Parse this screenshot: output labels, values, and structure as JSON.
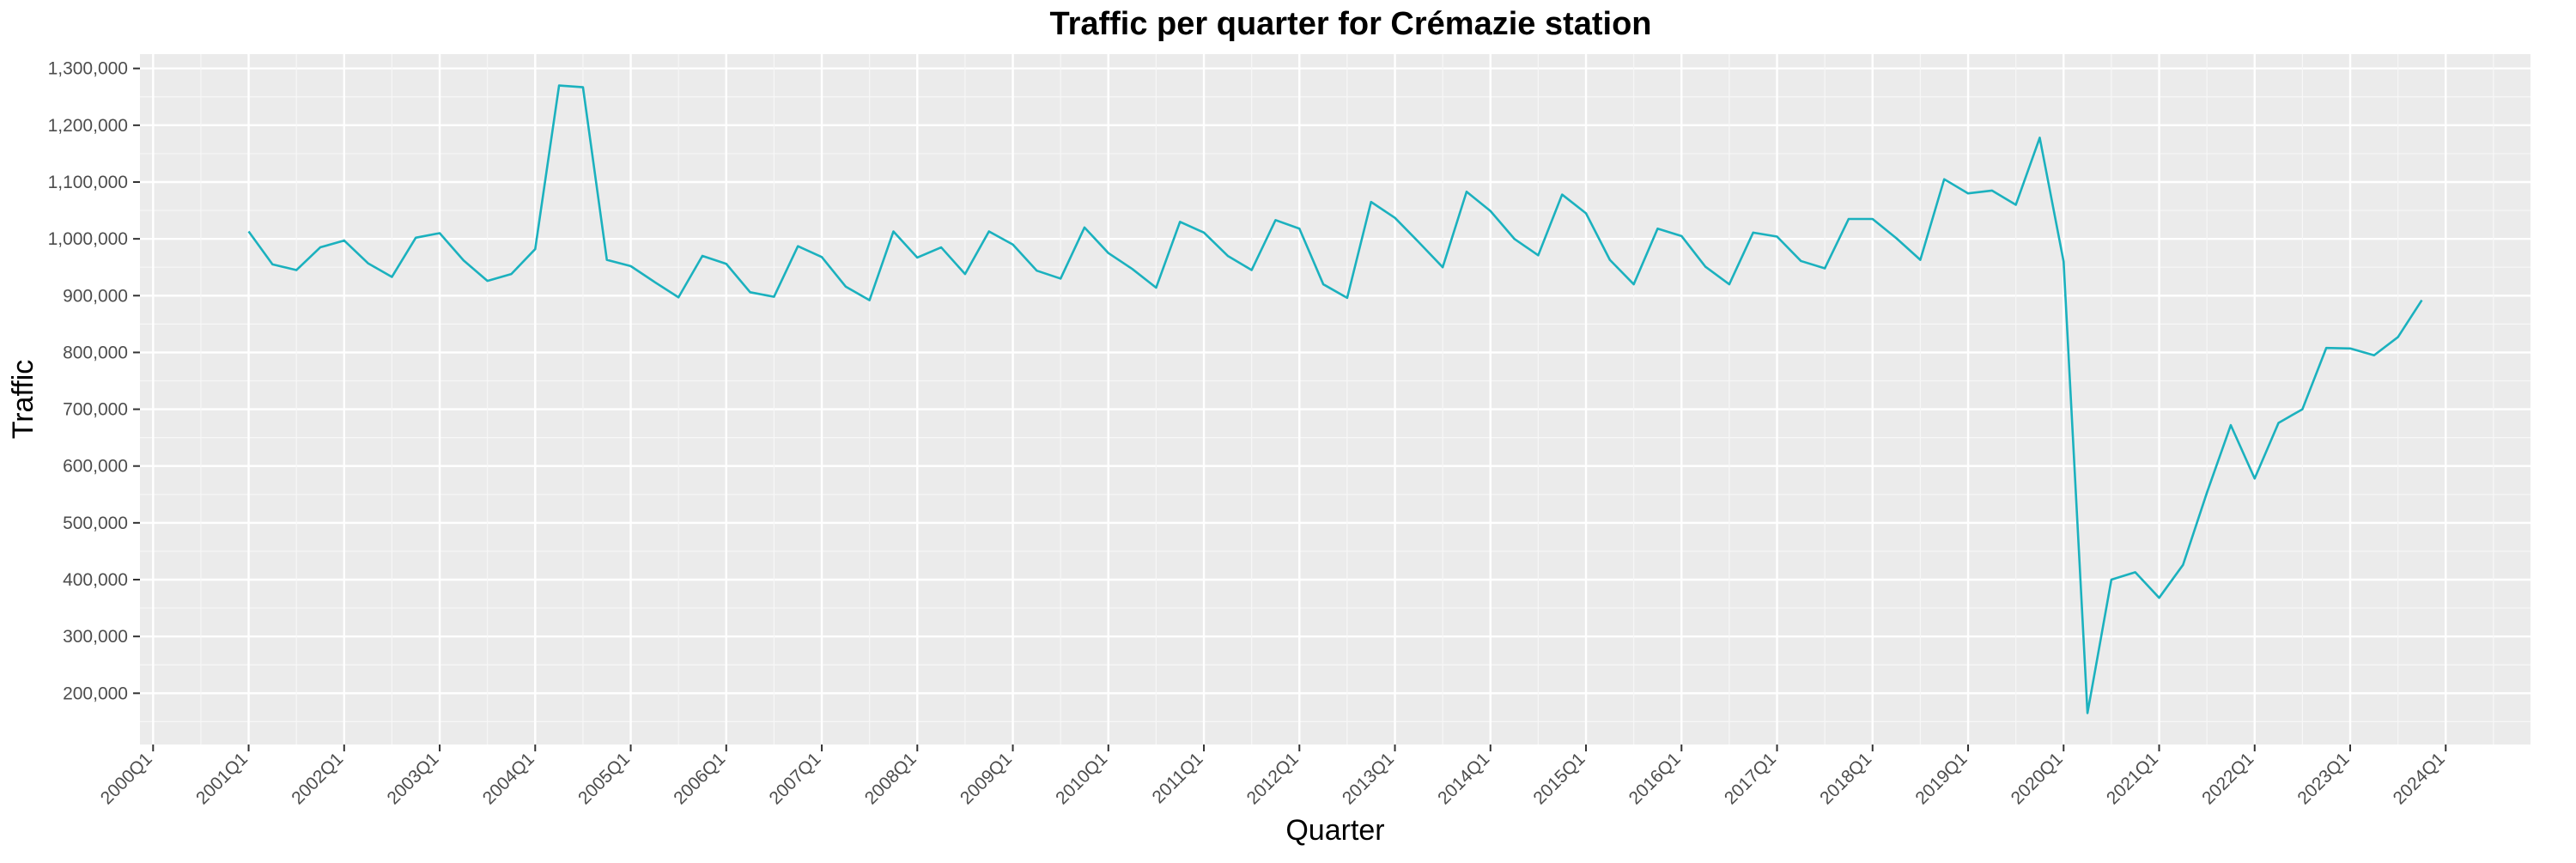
{
  "chart_data": {
    "type": "line",
    "title": "Traffic per quarter for Crémazie station",
    "xlabel": "Quarter",
    "ylabel": "Traffic",
    "x_ticks": [
      "2000Q1",
      "2001Q1",
      "2002Q1",
      "2003Q1",
      "2004Q1",
      "2005Q1",
      "2006Q1",
      "2007Q1",
      "2008Q1",
      "2009Q1",
      "2010Q1",
      "2011Q1",
      "2012Q1",
      "2013Q1",
      "2014Q1",
      "2015Q1",
      "2016Q1",
      "2017Q1",
      "2018Q1",
      "2019Q1",
      "2020Q1",
      "2021Q1",
      "2022Q1",
      "2023Q1",
      "2024Q1"
    ],
    "y_ticks": [
      "200,000",
      "300,000",
      "400,000",
      "500,000",
      "600,000",
      "700,000",
      "800,000",
      "900,000",
      "1,000,000",
      "1,100,000",
      "1,200,000",
      "1,300,000"
    ],
    "xlim": [
      "2000Q1",
      "2024Q1"
    ],
    "ylim": [
      150000,
      1320000
    ],
    "grid": true,
    "line_color": "#1bb1be",
    "series": [
      {
        "x": [
          "2001Q1",
          "2001Q2",
          "2001Q3",
          "2001Q4",
          "2002Q1",
          "2002Q2",
          "2002Q3",
          "2002Q4",
          "2003Q1",
          "2003Q2",
          "2003Q3",
          "2003Q4",
          "2004Q1",
          "2004Q2",
          "2004Q3",
          "2004Q4",
          "2005Q1",
          "2005Q2",
          "2005Q3",
          "2005Q4",
          "2006Q1",
          "2006Q2",
          "2006Q3",
          "2006Q4",
          "2007Q1",
          "2007Q2",
          "2007Q3",
          "2007Q4",
          "2008Q1",
          "2008Q2",
          "2008Q3",
          "2008Q4",
          "2009Q1",
          "2009Q2",
          "2009Q3",
          "2009Q4",
          "2010Q1",
          "2010Q2",
          "2010Q3",
          "2010Q4",
          "2011Q1",
          "2011Q2",
          "2011Q3",
          "2011Q4",
          "2012Q1",
          "2012Q2",
          "2012Q3",
          "2012Q4",
          "2013Q1",
          "2013Q2",
          "2013Q3",
          "2013Q4",
          "2014Q1",
          "2014Q2",
          "2014Q3",
          "2014Q4",
          "2015Q1",
          "2015Q2",
          "2015Q3",
          "2015Q4",
          "2016Q1",
          "2016Q2",
          "2016Q3",
          "2016Q4",
          "2017Q1",
          "2017Q2",
          "2017Q3",
          "2017Q4",
          "2018Q1",
          "2018Q2",
          "2018Q3",
          "2018Q4",
          "2019Q1",
          "2019Q2",
          "2019Q3",
          "2019Q4",
          "2020Q1",
          "2020Q2",
          "2020Q3",
          "2020Q4",
          "2021Q1",
          "2021Q2",
          "2021Q3",
          "2021Q4",
          "2022Q1",
          "2022Q2",
          "2022Q3",
          "2022Q4",
          "2023Q1",
          "2023Q2",
          "2023Q3",
          "2023Q4"
        ],
        "values": [
          1013000,
          955000,
          945000,
          985000,
          997000,
          957000,
          933000,
          1002000,
          1010000,
          962000,
          926000,
          938000,
          982000,
          1270000,
          1267000,
          963000,
          952000,
          924000,
          897000,
          970000,
          956000,
          906000,
          898000,
          987000,
          968000,
          916000,
          892000,
          1013000,
          967000,
          985000,
          938000,
          1013000,
          990000,
          944000,
          930000,
          1020000,
          975000,
          947000,
          914000,
          1030000,
          1011000,
          970000,
          945000,
          1033000,
          1018000,
          920000,
          896000,
          1065000,
          1037000,
          994000,
          950000,
          1083000,
          1049000,
          1000000,
          971000,
          1078000,
          1045000,
          963000,
          920000,
          1018000,
          1005000,
          951000,
          920000,
          1011000,
          1004000,
          961000,
          948000,
          1035000,
          1035000,
          1001000,
          963000,
          1105000,
          1080000,
          1085000,
          1060000,
          1178000,
          960000,
          165000,
          400000,
          413000,
          368000,
          426000,
          553000,
          672000,
          578000,
          676000,
          700000,
          808000,
          807000,
          795000,
          827000,
          892000
        ]
      }
    ]
  }
}
